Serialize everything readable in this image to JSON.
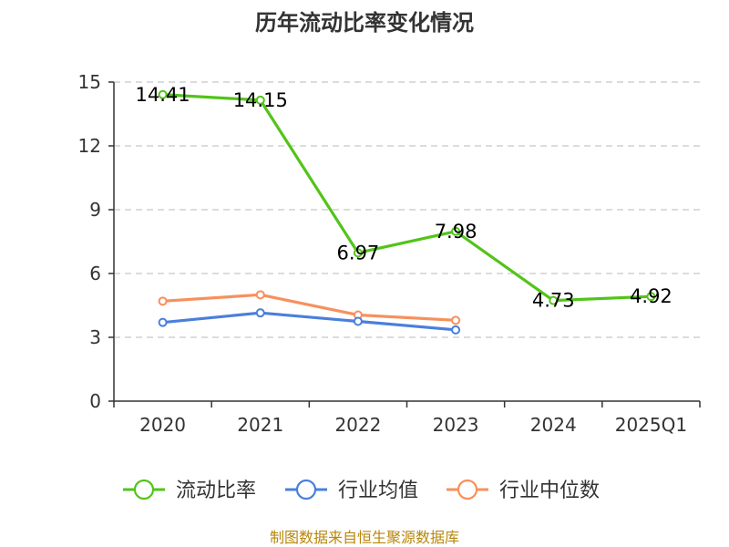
{
  "chart_data": {
    "type": "line",
    "title": "历年流动比率变化情况",
    "categories": [
      "2020",
      "2021",
      "2022",
      "2023",
      "2024",
      "2025Q1"
    ],
    "ylim": [
      0,
      15
    ],
    "yticks": [
      0,
      3,
      6,
      9,
      12,
      15
    ],
    "grid": true,
    "legend_position": "bottom",
    "series": [
      {
        "name": "流动比率",
        "color": "#52c41a",
        "values": [
          14.41,
          14.15,
          6.97,
          7.98,
          4.73,
          4.92
        ],
        "labels": [
          "14.41",
          "14.15",
          "6.97",
          "7.98",
          "4.73",
          "4.92"
        ]
      },
      {
        "name": "行业均值",
        "color": "#4a7fdc",
        "values": [
          3.7,
          4.15,
          3.75,
          3.35,
          null,
          null
        ]
      },
      {
        "name": "行业中位数",
        "color": "#f7905d",
        "values": [
          4.7,
          5.0,
          4.05,
          3.8,
          null,
          null
        ]
      }
    ]
  },
  "footer": {
    "source": "制图数据来自恒生聚源数据库"
  }
}
